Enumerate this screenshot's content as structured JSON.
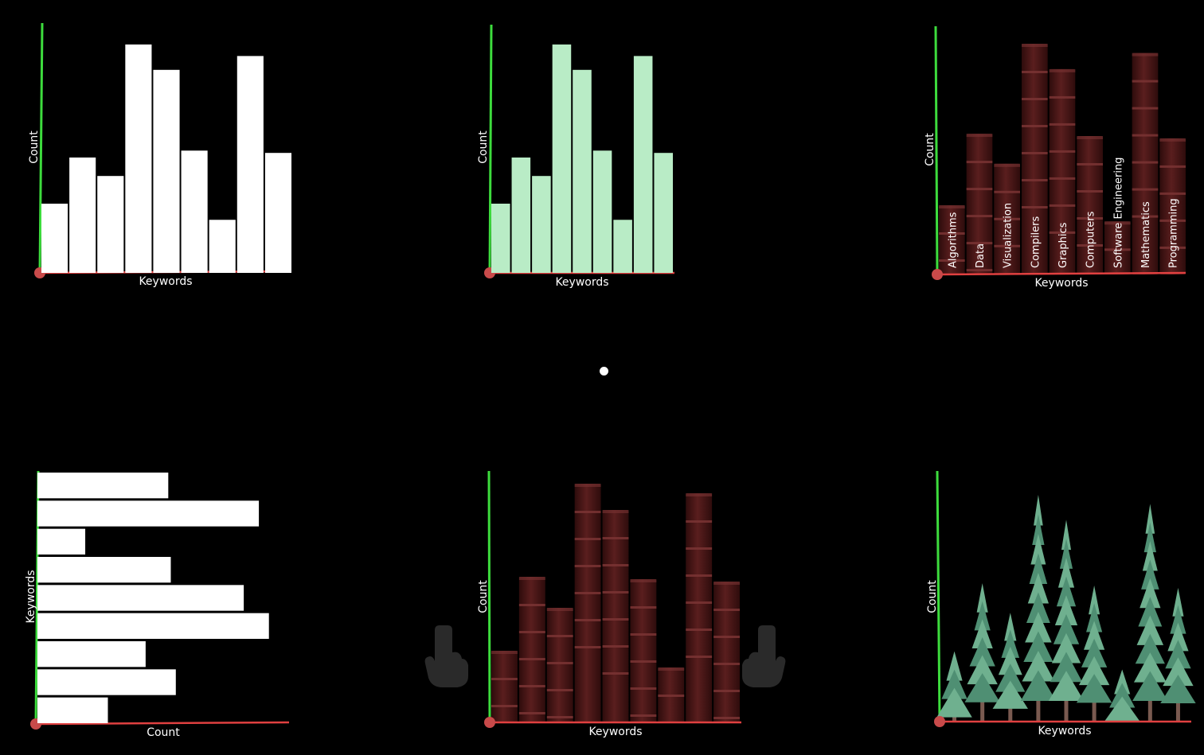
{
  "colors": {
    "y_axis": "#3ddc3d",
    "x_axis": "#e04040",
    "origin": "#c84a4a",
    "white_bar": "#ffffff",
    "mint_bar": "#b9ecc6",
    "book_base": "#5a1e1e",
    "book_dark": "#2e0c0c",
    "book_band": "#7a3434",
    "tree_foliage": "#4f8f73",
    "tree_foliage_light": "#6fb08f",
    "tree_trunk": "#7a5a50",
    "hand": "#2a2a2a"
  },
  "icons": [
    "pointing-hand-icon",
    "pointing-hand-icon"
  ],
  "chart_data": [
    {
      "id": "white-bars",
      "type": "bar",
      "style": "flat",
      "xlabel": "Keywords",
      "ylabel": "Count",
      "categories": [
        "Algorithms",
        "Data",
        "Visualization",
        "Compilers",
        "Graphics",
        "Computers",
        "Software Engineering",
        "Mathematics",
        "Programming"
      ],
      "values": [
        30,
        50,
        42,
        99,
        88,
        53,
        23,
        94,
        52
      ],
      "ylim": [
        0,
        100
      ]
    },
    {
      "id": "mint-bars",
      "type": "bar",
      "style": "flat",
      "xlabel": "Keywords",
      "ylabel": "Count",
      "categories": [
        "Algorithms",
        "Data",
        "Visualization",
        "Compilers",
        "Graphics",
        "Computers",
        "Software Engineering",
        "Mathematics",
        "Programming"
      ],
      "values": [
        30,
        50,
        42,
        99,
        88,
        53,
        23,
        94,
        52
      ],
      "ylim": [
        0,
        100
      ]
    },
    {
      "id": "books-labeled",
      "type": "bar",
      "style": "books",
      "xlabel": "Keywords",
      "ylabel": "Count",
      "show_tick_labels": true,
      "categories": [
        "Algorithms",
        "Data",
        "Visualization",
        "Compilers",
        "Graphics",
        "Computers",
        "Software Engineering",
        "Mathematics",
        "Programming"
      ],
      "values": [
        30,
        61,
        48,
        100,
        89,
        60,
        23,
        96,
        59
      ],
      "ylim": [
        0,
        100
      ]
    },
    {
      "id": "horizontal-bars",
      "type": "bar",
      "orientation": "horizontal",
      "style": "flat",
      "xlabel": "Count",
      "ylabel": "Keywords",
      "categories": [
        "Algorithms",
        "Data",
        "Visualization",
        "Compilers",
        "Graphics",
        "Computers",
        "Software Engineering",
        "Mathematics",
        "Programming"
      ],
      "values": [
        52,
        88,
        19,
        53,
        82,
        92,
        43,
        55,
        28
      ],
      "xlim": [
        0,
        100
      ]
    },
    {
      "id": "books",
      "type": "bar",
      "style": "books",
      "xlabel": "Keywords",
      "ylabel": "Count",
      "categories": [
        "Algorithms",
        "Data",
        "Visualization",
        "Compilers",
        "Graphics",
        "Computers",
        "Software Engineering",
        "Mathematics",
        "Programming"
      ],
      "values": [
        30,
        61,
        48,
        100,
        89,
        60,
        23,
        96,
        59
      ],
      "ylim": [
        0,
        100
      ]
    },
    {
      "id": "trees",
      "type": "bar",
      "style": "trees",
      "xlabel": "Keywords",
      "ylabel": "Count",
      "categories": [
        "Algorithms",
        "Data",
        "Visualization",
        "Compilers",
        "Graphics",
        "Computers",
        "Software Engineering",
        "Mathematics",
        "Programming"
      ],
      "values": [
        31,
        61,
        48,
        100,
        89,
        60,
        23,
        96,
        59
      ],
      "ylim": [
        0,
        100
      ]
    }
  ]
}
